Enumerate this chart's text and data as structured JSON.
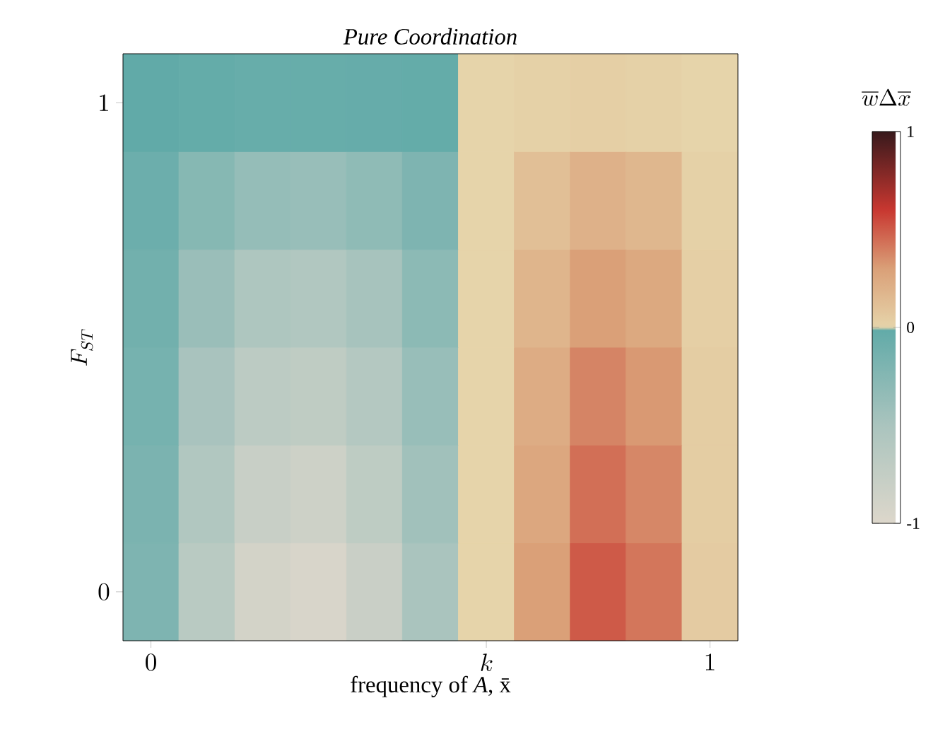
{
  "chart_data": {
    "type": "heatmap",
    "title": "Pure Coordination",
    "xlabel": "frequency of *A*, x̄",
    "ylabel": "F_{ST}",
    "clabel": "\\overline{w}\\Delta\\overline{x}",
    "categories": [
      "0",
      null,
      null,
      null,
      null,
      null,
      "k",
      null,
      null,
      null,
      "1"
    ],
    "y_categories": [
      "1",
      null,
      null,
      null,
      null,
      "0"
    ],
    "clim": [
      -1,
      1
    ],
    "cticks": [
      -1,
      0,
      1
    ],
    "cells": [
      [
        -0.01,
        -0.03,
        -0.05,
        -0.05,
        -0.04,
        -0.03,
        0,
        0.02,
        0.03,
        0.02,
        0
      ],
      [
        -0.08,
        -0.26,
        -0.36,
        -0.38,
        -0.32,
        -0.2,
        0,
        0.12,
        0.2,
        0.17,
        0.02
      ],
      [
        -0.12,
        -0.39,
        -0.54,
        -0.57,
        -0.48,
        -0.3,
        0,
        0.18,
        0.3,
        0.25,
        0.03
      ],
      [
        -0.15,
        -0.49,
        -0.68,
        -0.71,
        -0.6,
        -0.38,
        0,
        0.23,
        0.38,
        0.32,
        0.04
      ],
      [
        -0.18,
        -0.57,
        -0.79,
        -0.84,
        -0.7,
        -0.44,
        0,
        0.26,
        0.44,
        0.37,
        0.04
      ],
      [
        -0.2,
        -0.65,
        -0.9,
        -0.95,
        -0.8,
        -0.5,
        0,
        0.3,
        0.5,
        0.42,
        0.05
      ]
    ]
  }
}
